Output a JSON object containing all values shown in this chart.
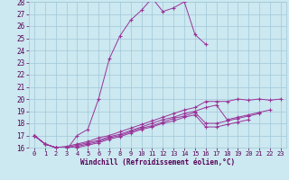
{
  "xlabel": "Windchill (Refroidissement éolien,°C)",
  "xlim": [
    -0.5,
    23.5
  ],
  "ylim": [
    16,
    28
  ],
  "xticks": [
    0,
    1,
    2,
    3,
    4,
    5,
    6,
    7,
    8,
    9,
    10,
    11,
    12,
    13,
    14,
    15,
    16,
    17,
    18,
    19,
    20,
    21,
    22,
    23
  ],
  "yticks": [
    16,
    17,
    18,
    19,
    20,
    21,
    22,
    23,
    24,
    25,
    26,
    27,
    28
  ],
  "bg_color": "#cce8f0",
  "grid_color": "#a0c8d8",
  "line_color": "#993399",
  "label_color": "#550055",
  "tick_color": "#550055",
  "main_x": [
    0,
    1,
    2,
    3,
    4,
    5,
    6,
    7,
    8,
    9,
    10,
    11,
    12,
    13,
    14,
    15,
    16
  ],
  "main_y": [
    17.0,
    16.3,
    16.0,
    15.8,
    17.0,
    17.5,
    20.0,
    23.3,
    25.2,
    26.5,
    27.3,
    28.3,
    27.2,
    27.5,
    28.0,
    25.3,
    24.5
  ],
  "diag_lines": [
    {
      "x": [
        0,
        1,
        2,
        3,
        4,
        5,
        6,
        7,
        8,
        9,
        10,
        11,
        12,
        13,
        14,
        15,
        16,
        17,
        18,
        19,
        20,
        21,
        22,
        23
      ],
      "y": [
        17.0,
        16.3,
        16.0,
        16.1,
        16.3,
        16.5,
        16.8,
        17.0,
        17.3,
        17.6,
        17.9,
        18.2,
        18.5,
        18.8,
        19.1,
        19.3,
        19.8,
        19.8,
        19.8,
        20.0,
        19.9,
        20.0,
        19.9,
        20.0
      ]
    },
    {
      "x": [
        0,
        1,
        2,
        3,
        4,
        5,
        6,
        7,
        8,
        9,
        10,
        11,
        12,
        13,
        14,
        15,
        16,
        17,
        18,
        19,
        20,
        21,
        22
      ],
      "y": [
        17.0,
        16.3,
        16.0,
        16.0,
        16.2,
        16.4,
        16.6,
        16.9,
        17.1,
        17.4,
        17.7,
        18.0,
        18.3,
        18.5,
        18.8,
        19.0,
        19.3,
        19.5,
        18.3,
        18.5,
        18.7,
        18.9,
        19.1
      ]
    },
    {
      "x": [
        0,
        1,
        2,
        3,
        4,
        5,
        6,
        7,
        8,
        9,
        10,
        11,
        12,
        13,
        14,
        15,
        16,
        17,
        18,
        19,
        20,
        21
      ],
      "y": [
        17.0,
        16.3,
        16.0,
        16.0,
        16.1,
        16.3,
        16.5,
        16.8,
        17.0,
        17.3,
        17.6,
        17.8,
        18.1,
        18.4,
        18.6,
        18.9,
        18.0,
        18.0,
        18.2,
        18.4,
        18.6,
        18.8
      ]
    },
    {
      "x": [
        0,
        1,
        2,
        3,
        4,
        5,
        6,
        7,
        8,
        9,
        10,
        11,
        12,
        13,
        14,
        15,
        16,
        17,
        18,
        19,
        20
      ],
      "y": [
        17.0,
        16.3,
        16.0,
        16.0,
        16.0,
        16.2,
        16.4,
        16.7,
        16.9,
        17.2,
        17.5,
        17.7,
        18.0,
        18.2,
        18.5,
        18.7,
        17.7,
        17.7,
        17.9,
        18.1,
        18.3
      ]
    }
  ]
}
